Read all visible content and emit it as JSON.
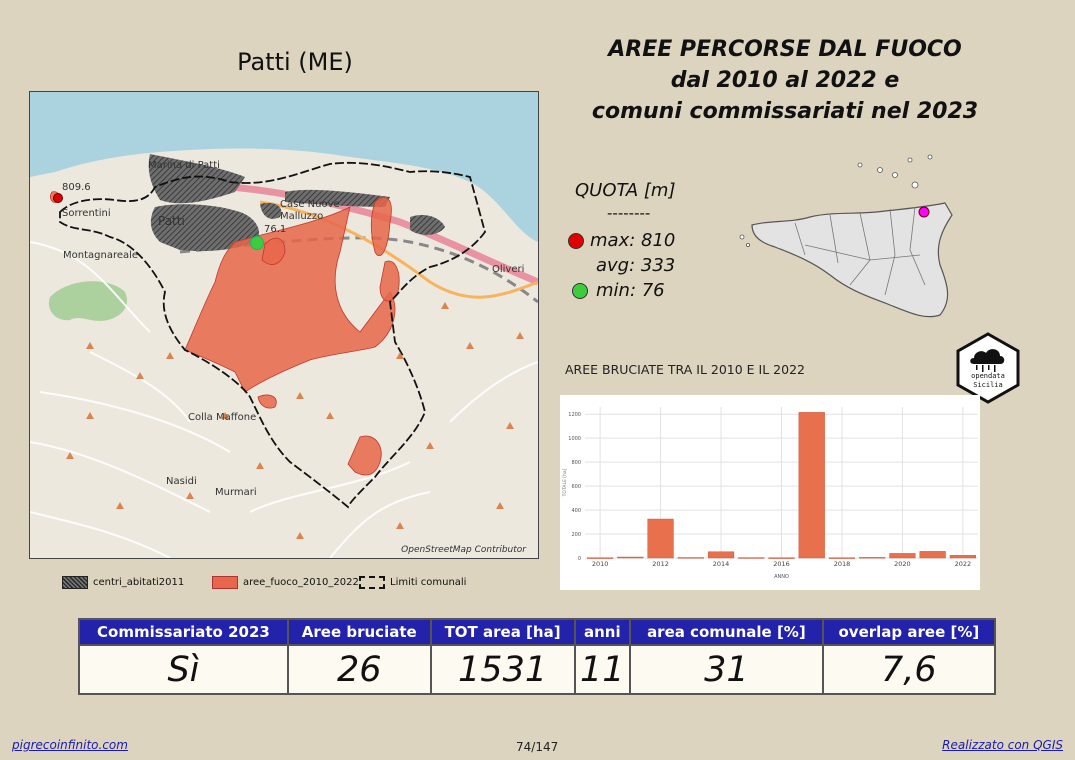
{
  "comune_title": "Patti (ME)",
  "main_title": {
    "line1": "AREE PERCORSE DAL FUOCO",
    "line2": "dal 2010 al 2022 e",
    "line3": "comuni commissariati nel 2023"
  },
  "map": {
    "place_labels": [
      "Marina di Patti",
      "Patti",
      "Case Nuove Malluzzo",
      "Sorrentini",
      "Montagnareale",
      "Oliveri",
      "Colla Maffone",
      "Nasidi",
      "Murmari"
    ],
    "elevation_labels": {
      "max": "809.6",
      "min": "76.1"
    },
    "attribution": "OpenStreetMap Contributor"
  },
  "legend": {
    "items": [
      "centri_abitati2011",
      "aree_fuoco_2010_2022",
      "Limiti comunali"
    ]
  },
  "quota": {
    "title": "QUOTA [m]",
    "separator": "--------",
    "max_label": "max: 810",
    "avg_label": "avg: 333",
    "min_label": "min: 76"
  },
  "colors": {
    "background": "#ddd4bf",
    "fire_area": "#e8664a",
    "header_blue": "#2222aa",
    "max_dot": "#e00000",
    "min_dot": "#3dcc3d",
    "location_dot": "#ff00ff",
    "sea": "#aad3df"
  },
  "logo": {
    "line1": "opendata",
    "line2": "Sicilia"
  },
  "chart_data": {
    "type": "bar",
    "title": "AREE BRUCIATE TRA IL 2010 E IL 2022",
    "xlabel": "ANNO",
    "ylabel": "TOTALE [ha]",
    "x": [
      2010,
      2011,
      2012,
      2013,
      2014,
      2015,
      2016,
      2017,
      2018,
      2019,
      2020,
      2021,
      2022
    ],
    "values": [
      2,
      8,
      325,
      4,
      52,
      3,
      2,
      1215,
      2,
      5,
      38,
      55,
      22
    ],
    "x_ticks": [
      "2010",
      "2012",
      "2014",
      "2016",
      "2018",
      "2020",
      "2022"
    ],
    "y_ticks": [
      0,
      200,
      400,
      600,
      800,
      1000,
      1200
    ],
    "ylim": [
      0,
      1260
    ],
    "grid": true
  },
  "table": {
    "headers": [
      "Commissariato 2023",
      "Aree bruciate",
      "TOT area [ha]",
      "anni",
      "area comunale [%]",
      "overlap aree [%]"
    ],
    "values": [
      "Sì",
      "26",
      "1531",
      "11",
      "31",
      "7,6"
    ]
  },
  "footer": {
    "left": "pigrecoinfinito.com",
    "page": "74/147",
    "right": "Realizzato con QGIS"
  }
}
